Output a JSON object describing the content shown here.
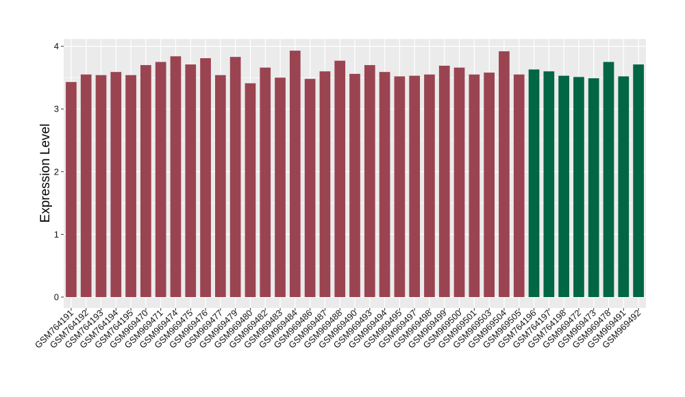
{
  "chart_data": {
    "type": "bar",
    "title": "",
    "xlabel": "",
    "ylabel": "Expression Level",
    "ylim": [
      0,
      4.1
    ],
    "yticks": [
      "0",
      "1",
      "2",
      "3",
      "4"
    ],
    "grid": true,
    "legend": "none",
    "colors": {
      "group1": "#9b4451",
      "group2": "#006644",
      "panel_background": "#ebebeb",
      "grid": "#ffffff",
      "text": "#000000"
    },
    "categories": [
      "GSM764191",
      "GSM764192",
      "GSM764193",
      "GSM764194",
      "GSM764195",
      "GSM969470",
      "GSM969471",
      "GSM969474",
      "GSM969475",
      "GSM969476",
      "GSM969477",
      "GSM969479",
      "GSM969480",
      "GSM969482",
      "GSM969483",
      "GSM969484",
      "GSM969486",
      "GSM969487",
      "GSM969488",
      "GSM969490",
      "GSM969493",
      "GSM969494",
      "GSM969495",
      "GSM969497",
      "GSM969498",
      "GSM969499",
      "GSM969500",
      "GSM969501",
      "GSM969503",
      "GSM969504",
      "GSM969505",
      "GSM764196",
      "GSM764197",
      "GSM764198",
      "GSM969472",
      "GSM969473",
      "GSM969478",
      "GSM969491",
      "GSM969492"
    ],
    "values": [
      3.43,
      3.55,
      3.54,
      3.59,
      3.54,
      3.7,
      3.75,
      3.84,
      3.71,
      3.81,
      3.54,
      3.83,
      3.41,
      3.66,
      3.5,
      3.93,
      3.48,
      3.6,
      3.77,
      3.56,
      3.7,
      3.59,
      3.52,
      3.53,
      3.55,
      3.69,
      3.66,
      3.55,
      3.58,
      3.92,
      3.55,
      3.63,
      3.6,
      3.53,
      3.51,
      3.49,
      3.75,
      3.52,
      3.71
    ],
    "groups": [
      1,
      1,
      1,
      1,
      1,
      1,
      1,
      1,
      1,
      1,
      1,
      1,
      1,
      1,
      1,
      1,
      1,
      1,
      1,
      1,
      1,
      1,
      1,
      1,
      1,
      1,
      1,
      1,
      1,
      1,
      1,
      2,
      2,
      2,
      2,
      2,
      2,
      2,
      2
    ]
  }
}
